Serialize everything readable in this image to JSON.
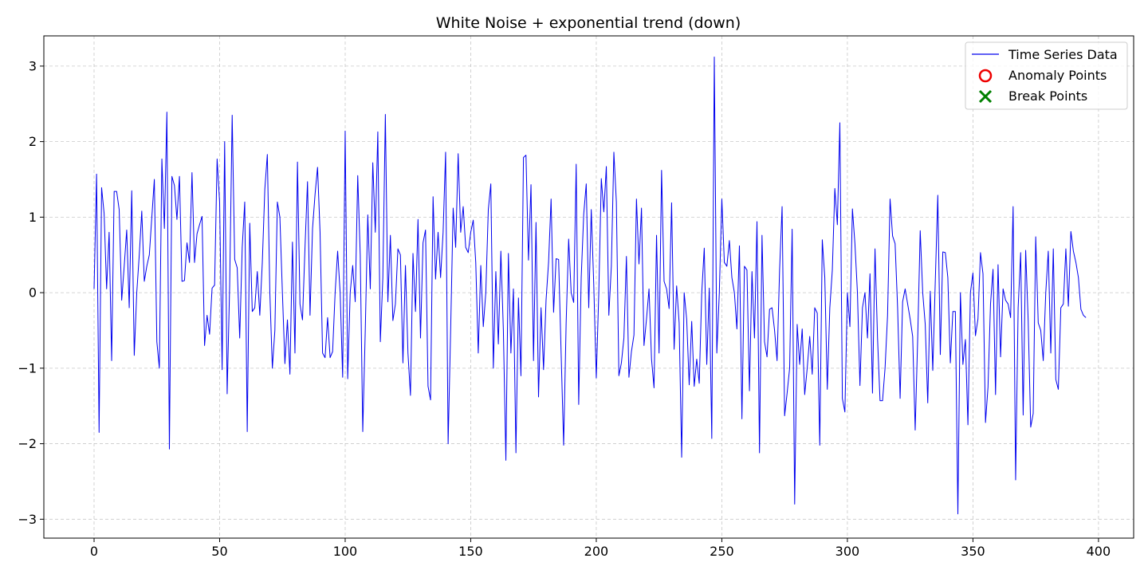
{
  "chart_data": {
    "type": "line",
    "title": "White Noise + exponential trend (down)",
    "xlabel": "",
    "ylabel": "",
    "xlim": [
      -20,
      414
    ],
    "ylim": [
      -3.25,
      3.4
    ],
    "xticks": [
      0,
      50,
      100,
      150,
      200,
      250,
      300,
      350,
      400
    ],
    "yticks": [
      -3,
      -2,
      -1,
      0,
      1,
      2,
      3
    ],
    "grid": true,
    "legend": {
      "placement": "top-right",
      "entries": [
        {
          "label": "Time Series Data",
          "marker": "line",
          "color": "#0000ee"
        },
        {
          "label": "Anomaly Points",
          "marker": "circle",
          "color": "#ee0000"
        },
        {
          "label": "Break Points",
          "marker": "x",
          "color": "#008000"
        }
      ]
    },
    "series": [
      {
        "name": "Time Series Data",
        "color": "#0000ee",
        "x_start": 0,
        "x_step": 1,
        "values": [
          0.05,
          1.57,
          -1.85,
          1.39,
          1.05,
          0.05,
          0.8,
          -0.9,
          1.34,
          1.34,
          1.1,
          -0.1,
          0.35,
          0.83,
          -0.2,
          1.35,
          -0.83,
          0.0,
          0.5,
          1.08,
          0.15,
          0.35,
          0.5,
          1.0,
          1.5,
          -0.65,
          -1.0,
          1.77,
          0.85,
          2.39,
          -2.07,
          1.54,
          1.42,
          0.97,
          1.54,
          0.15,
          0.16,
          0.66,
          0.4,
          1.59,
          0.4,
          0.78,
          0.9,
          1.01,
          -0.7,
          -0.3,
          -0.55,
          0.06,
          0.1,
          1.77,
          1.2,
          -1.02,
          2.0,
          -1.34,
          0.1,
          2.35,
          0.44,
          0.33,
          -0.6,
          0.6,
          1.2,
          -1.84,
          0.92,
          -0.25,
          -0.2,
          0.28,
          -0.3,
          0.4,
          1.37,
          1.83,
          0.0,
          -1.0,
          -0.5,
          1.2,
          1.0,
          0.0,
          -0.94,
          -0.36,
          -1.08,
          0.67,
          -0.8,
          1.73,
          -0.15,
          -0.36,
          0.6,
          1.47,
          -0.3,
          0.85,
          1.3,
          1.66,
          0.8,
          -0.8,
          -0.86,
          -0.33,
          -0.86,
          -0.78,
          0.0,
          0.55,
          0.0,
          -1.12,
          2.14,
          -1.14,
          0.0,
          0.36,
          -0.12,
          1.55,
          0.5,
          -1.84,
          -0.5,
          1.03,
          0.05,
          1.72,
          0.8,
          2.13,
          -0.65,
          0.2,
          2.36,
          -0.12,
          0.76,
          -0.37,
          -0.15,
          0.58,
          0.5,
          -0.93,
          0.36,
          -0.8,
          -1.36,
          0.52,
          -0.25,
          0.97,
          -0.6,
          0.66,
          0.83,
          -1.24,
          -1.42,
          1.27,
          0.18,
          0.8,
          0.2,
          0.8,
          1.86,
          -2.0,
          -0.5,
          1.12,
          0.6,
          1.84,
          0.8,
          1.14,
          0.6,
          0.53,
          0.8,
          0.96,
          0.4,
          -0.8,
          0.36,
          -0.45,
          0.0,
          1.1,
          1.44,
          -1.0,
          0.28,
          -0.68,
          0.55,
          -0.5,
          -2.22,
          0.52,
          -0.8,
          0.05,
          -2.12,
          -0.07,
          -1.1,
          1.79,
          1.82,
          0.43,
          1.43,
          -0.9,
          0.93,
          -1.38,
          -0.2,
          -1.02,
          -0.1,
          0.4,
          1.24,
          -0.26,
          0.45,
          0.44,
          -0.8,
          -2.02,
          -0.4,
          0.71,
          0.0,
          -0.13,
          1.7,
          -1.48,
          0.2,
          1.04,
          1.44,
          -0.2,
          1.1,
          0.1,
          -1.13,
          0.0,
          1.51,
          1.07,
          1.67,
          -0.3,
          0.35,
          1.86,
          1.2,
          -1.1,
          -0.93,
          -0.6,
          0.48,
          -1.12,
          -0.78,
          -0.56,
          1.24,
          0.38,
          1.12,
          -0.7,
          -0.35,
          0.05,
          -0.88,
          -1.26,
          0.76,
          -0.8,
          1.62,
          0.15,
          0.05,
          -0.21,
          1.19,
          -0.75,
          0.09,
          -0.4,
          -2.18,
          0.0,
          -0.35,
          -1.22,
          -0.38,
          -1.24,
          -0.88,
          -1.2,
          0.0,
          0.59,
          -0.95,
          0.06,
          -1.93,
          3.12,
          -0.8,
          0.0,
          1.24,
          0.4,
          0.35,
          0.69,
          0.2,
          0.0,
          -0.48,
          0.62,
          -1.67,
          0.35,
          0.3,
          -1.3,
          0.28,
          -0.6,
          0.94,
          -2.12,
          0.76,
          -0.65,
          -0.85,
          -0.22,
          -0.2,
          -0.5,
          -0.9,
          0.3,
          1.14,
          -1.63,
          -1.33,
          -1.0,
          0.84,
          -2.8,
          -0.42,
          -0.95,
          -0.48,
          -1.35,
          -1.0,
          -0.58,
          -1.08,
          -0.2,
          -0.27,
          -2.02,
          0.7,
          0.2,
          -1.28,
          -0.2,
          0.3,
          1.38,
          0.9,
          2.25,
          -1.4,
          -1.58,
          0.0,
          -0.45,
          1.11,
          0.65,
          0.0,
          -1.23,
          -0.2,
          0.0,
          -0.6,
          0.25,
          -1.33,
          0.58,
          -0.6,
          -1.43,
          -1.43,
          -1.0,
          -0.3,
          1.24,
          0.75,
          0.65,
          -0.2,
          -1.4,
          -0.12,
          0.05,
          -0.15,
          -0.35,
          -0.58,
          -1.82,
          -0.6,
          0.82,
          0.0,
          -0.42,
          -1.46,
          0.02,
          -1.03,
          0.15,
          1.29,
          -0.82,
          0.54,
          0.53,
          0.2,
          -0.93,
          -0.25,
          -0.25,
          -2.93,
          0.0,
          -0.95,
          -0.62,
          -1.75,
          0.0,
          0.26,
          -0.57,
          -0.35,
          0.53,
          0.25,
          -1.72,
          -1.25,
          -0.15,
          0.31,
          -1.35,
          0.37,
          -0.85,
          0.05,
          -0.1,
          -0.15,
          -0.33,
          1.14,
          -2.48,
          -0.2,
          0.53,
          -1.62,
          0.56,
          -0.37,
          -1.78,
          -1.6,
          0.74,
          -0.4,
          -0.5,
          -0.9,
          0.0,
          0.55,
          -0.8,
          0.58,
          -1.15,
          -1.28,
          -0.2,
          -0.15,
          0.58,
          -0.18,
          0.81,
          0.55,
          0.4,
          0.2,
          -0.22,
          -0.3,
          -0.33
        ]
      }
    ]
  }
}
